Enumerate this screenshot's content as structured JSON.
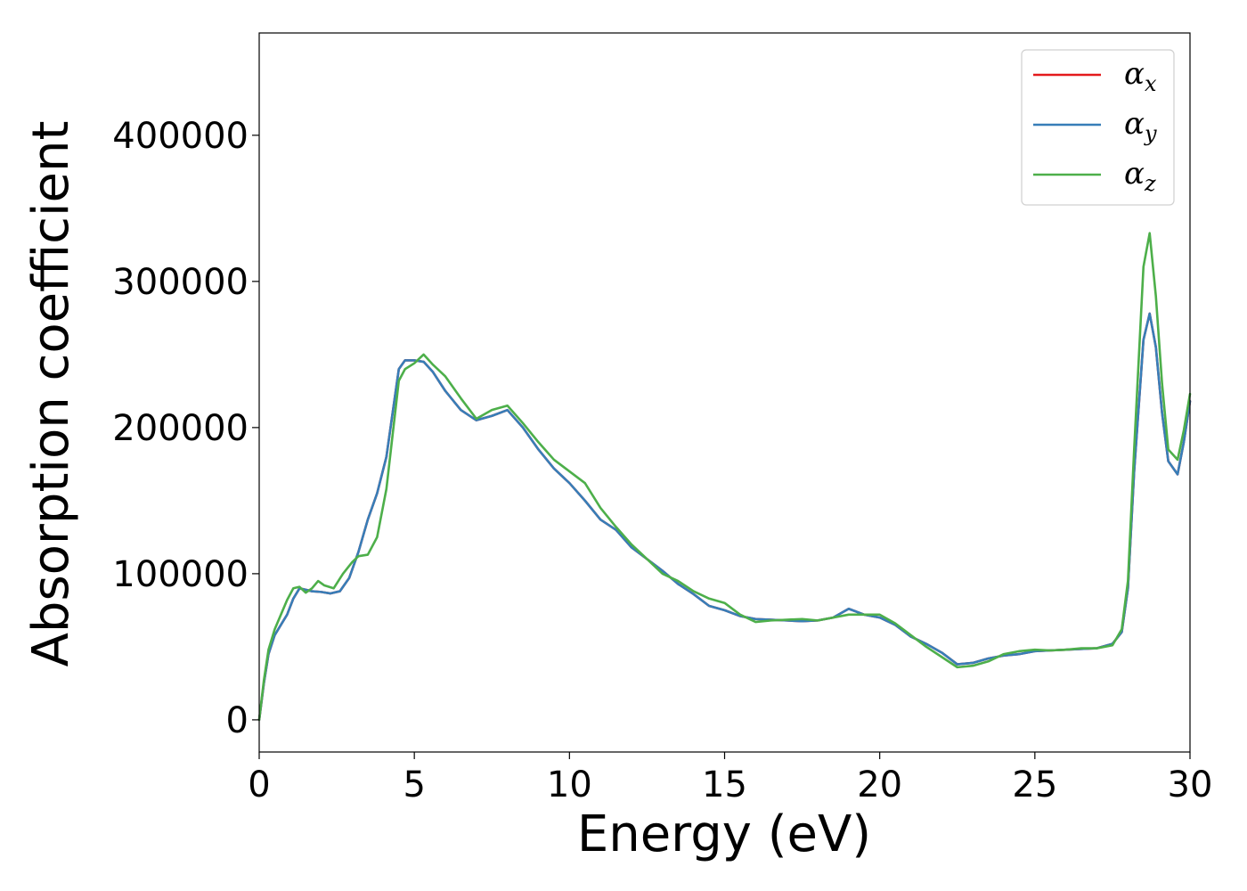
{
  "chart_data": {
    "type": "line",
    "title": "",
    "xlabel": "Energy (eV)",
    "ylabel": "Absorption coefficient",
    "xlim": [
      0,
      30
    ],
    "ylim": [
      -22000,
      470000
    ],
    "xticks": [
      0,
      5,
      10,
      15,
      20,
      25,
      30
    ],
    "yticks": [
      0,
      100000,
      200000,
      300000,
      400000
    ],
    "grid": false,
    "legend_position": "top-right",
    "series": [
      {
        "name": "α",
        "subscript": "x",
        "color": "#e41a1c",
        "x": [
          0,
          0.15,
          0.3,
          0.5,
          0.7,
          0.9,
          1.1,
          1.3,
          1.5,
          1.7,
          2.0,
          2.3,
          2.6,
          2.9,
          3.2,
          3.5,
          3.8,
          4.1,
          4.3,
          4.5,
          4.7,
          5.0,
          5.3,
          5.6,
          6.0,
          6.5,
          7.0,
          7.5,
          8.0,
          8.5,
          9.0,
          9.5,
          10.0,
          10.5,
          11.0,
          11.5,
          12.0,
          12.5,
          13.0,
          13.5,
          14.0,
          14.5,
          15.0,
          15.5,
          16.0,
          16.5,
          17.0,
          17.5,
          18.0,
          18.5,
          19.0,
          19.5,
          20.0,
          20.5,
          21.0,
          21.5,
          22.0,
          22.5,
          23.0,
          23.5,
          24.0,
          24.5,
          25.0,
          25.5,
          26.0,
          26.5,
          27.0,
          27.5,
          27.8,
          28.0,
          28.2,
          28.5,
          28.7,
          28.9,
          29.1,
          29.3,
          29.6,
          29.8,
          30.0
        ],
        "y": [
          0,
          25000,
          45000,
          58000,
          65000,
          72000,
          83000,
          90000,
          89000,
          88000,
          87500,
          86500,
          88000,
          97000,
          115000,
          137000,
          155000,
          180000,
          210000,
          240000,
          246000,
          246000,
          245000,
          238000,
          225000,
          212000,
          205000,
          208000,
          212000,
          200000,
          185000,
          172000,
          162000,
          150000,
          137000,
          130000,
          118000,
          110000,
          102000,
          93000,
          86000,
          78000,
          75000,
          71000,
          69000,
          68500,
          68000,
          67500,
          68000,
          70000,
          76000,
          72000,
          70000,
          65000,
          57000,
          52000,
          46000,
          38000,
          39000,
          42000,
          44000,
          45000,
          47000,
          47500,
          48000,
          48500,
          49000,
          52000,
          60000,
          90000,
          170000,
          260000,
          278000,
          255000,
          210000,
          177000,
          168000,
          190000,
          218000
        ]
      },
      {
        "name": "α",
        "subscript": "y",
        "color": "#377eb8",
        "x": [
          0,
          0.15,
          0.3,
          0.5,
          0.7,
          0.9,
          1.1,
          1.3,
          1.5,
          1.7,
          2.0,
          2.3,
          2.6,
          2.9,
          3.2,
          3.5,
          3.8,
          4.1,
          4.3,
          4.5,
          4.7,
          5.0,
          5.3,
          5.6,
          6.0,
          6.5,
          7.0,
          7.5,
          8.0,
          8.5,
          9.0,
          9.5,
          10.0,
          10.5,
          11.0,
          11.5,
          12.0,
          12.5,
          13.0,
          13.5,
          14.0,
          14.5,
          15.0,
          15.5,
          16.0,
          16.5,
          17.0,
          17.5,
          18.0,
          18.5,
          19.0,
          19.5,
          20.0,
          20.5,
          21.0,
          21.5,
          22.0,
          22.5,
          23.0,
          23.5,
          24.0,
          24.5,
          25.0,
          25.5,
          26.0,
          26.5,
          27.0,
          27.5,
          27.8,
          28.0,
          28.2,
          28.5,
          28.7,
          28.9,
          29.1,
          29.3,
          29.6,
          29.8,
          30.0
        ],
        "y": [
          0,
          25000,
          45000,
          58000,
          65000,
          72000,
          83000,
          90000,
          89000,
          88000,
          87500,
          86500,
          88000,
          97000,
          115000,
          137000,
          155000,
          180000,
          210000,
          240000,
          246000,
          246000,
          245000,
          238000,
          225000,
          212000,
          205000,
          208000,
          212000,
          200000,
          185000,
          172000,
          162000,
          150000,
          137000,
          130000,
          118000,
          110000,
          102000,
          93000,
          86000,
          78000,
          75000,
          71000,
          69000,
          68500,
          68000,
          67500,
          68000,
          70000,
          76000,
          72000,
          70000,
          65000,
          57000,
          52000,
          46000,
          38000,
          39000,
          42000,
          44000,
          45000,
          47000,
          47500,
          48000,
          48500,
          49000,
          52000,
          60000,
          90000,
          170000,
          260000,
          278000,
          255000,
          210000,
          177000,
          168000,
          190000,
          218000
        ]
      },
      {
        "name": "α",
        "subscript": "z",
        "color": "#4daf4a",
        "x": [
          0,
          0.15,
          0.3,
          0.5,
          0.7,
          0.9,
          1.1,
          1.3,
          1.5,
          1.7,
          1.9,
          2.1,
          2.4,
          2.7,
          3.0,
          3.2,
          3.5,
          3.8,
          4.1,
          4.3,
          4.5,
          4.7,
          5.0,
          5.3,
          5.6,
          6.0,
          6.5,
          7.0,
          7.5,
          8.0,
          8.5,
          9.0,
          9.5,
          10.0,
          10.5,
          11.0,
          11.5,
          12.0,
          12.5,
          13.0,
          13.5,
          14.0,
          14.5,
          15.0,
          15.5,
          16.0,
          16.5,
          17.0,
          17.5,
          18.0,
          18.5,
          19.0,
          19.5,
          20.0,
          20.5,
          21.0,
          21.5,
          22.0,
          22.5,
          23.0,
          23.5,
          24.0,
          24.5,
          25.0,
          25.5,
          26.0,
          26.5,
          27.0,
          27.5,
          27.8,
          28.0,
          28.2,
          28.5,
          28.7,
          28.9,
          29.1,
          29.3,
          29.6,
          29.8,
          30.0
        ],
        "y": [
          0,
          27000,
          48000,
          62000,
          72000,
          82000,
          90000,
          91000,
          87000,
          90000,
          95000,
          92000,
          90000,
          100000,
          108000,
          112000,
          113000,
          125000,
          158000,
          195000,
          232000,
          240000,
          244000,
          250000,
          243000,
          235000,
          220000,
          206000,
          212000,
          215000,
          203000,
          190000,
          178000,
          170000,
          162000,
          145000,
          132000,
          120000,
          110000,
          100000,
          95000,
          88000,
          83000,
          80000,
          72000,
          67000,
          68000,
          68500,
          69000,
          68000,
          70000,
          72000,
          72000,
          72000,
          66000,
          58000,
          50000,
          43000,
          36000,
          37000,
          40000,
          45000,
          47000,
          48000,
          47500,
          48000,
          49000,
          49000,
          51000,
          62000,
          95000,
          185000,
          310000,
          333000,
          290000,
          230000,
          185000,
          178000,
          198000,
          223000
        ]
      }
    ]
  }
}
